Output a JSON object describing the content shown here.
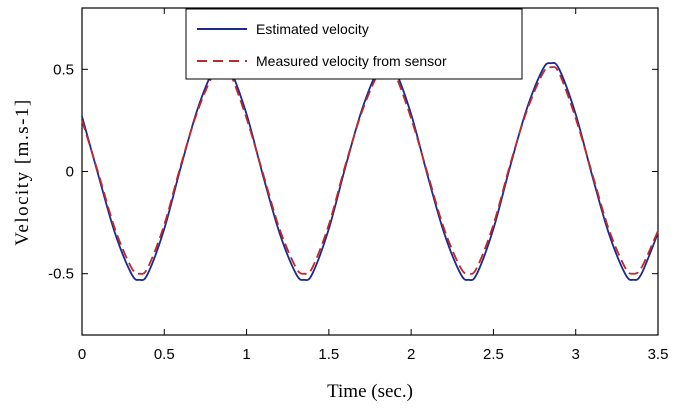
{
  "chart_data": {
    "type": "line",
    "xlabel": "Time (sec.)",
    "ylabel": "Velocity [m.s-1]",
    "xlim": [
      0,
      3.5
    ],
    "ylim": [
      -0.8,
      0.8
    ],
    "x_ticks": [
      0,
      0.5,
      1,
      1.5,
      2,
      2.5,
      3,
      3.5
    ],
    "x_tick_labels": [
      "0",
      "0.5",
      "1",
      "1.5",
      "2",
      "2.5",
      "3",
      "3.5"
    ],
    "y_ticks": [
      0.5,
      0,
      -0.5
    ],
    "y_tick_labels": [
      "0.5",
      "0",
      "-0.5"
    ],
    "grid": false,
    "legend_position": "top-center",
    "x": [
      0,
      0.1,
      0.2,
      0.3,
      0.35,
      0.4,
      0.5,
      0.6,
      0.7,
      0.8,
      0.85,
      0.9,
      1.0,
      1.1,
      1.2,
      1.3,
      1.35,
      1.4,
      1.5,
      1.6,
      1.7,
      1.8,
      1.85,
      1.9,
      2.0,
      2.1,
      2.2,
      2.3,
      2.35,
      2.4,
      2.5,
      2.6,
      2.7,
      2.8,
      2.85,
      2.9,
      3.0,
      3.1,
      3.2,
      3.3,
      3.35,
      3.4,
      3.5
    ],
    "series": [
      {
        "name": "Estimated velocity",
        "color": "#1c2a8c",
        "style": "solid",
        "values": [
          0.27,
          -0.02,
          -0.3,
          -0.5,
          -0.53,
          -0.5,
          -0.28,
          0.02,
          0.3,
          0.5,
          0.53,
          0.5,
          0.28,
          -0.02,
          -0.3,
          -0.5,
          -0.53,
          -0.5,
          -0.28,
          0.02,
          0.3,
          0.5,
          0.53,
          0.5,
          0.28,
          -0.02,
          -0.3,
          -0.5,
          -0.53,
          -0.5,
          -0.28,
          0.02,
          0.3,
          0.5,
          0.53,
          0.5,
          0.28,
          -0.02,
          -0.3,
          -0.5,
          -0.53,
          -0.5,
          -0.3
        ]
      },
      {
        "name": "Measured velocity from sensor",
        "color": "#c0282d",
        "style": "dashed",
        "values": [
          0.25,
          -0.01,
          -0.28,
          -0.47,
          -0.5,
          -0.47,
          -0.26,
          0.03,
          0.29,
          0.48,
          0.51,
          0.48,
          0.26,
          -0.01,
          -0.28,
          -0.47,
          -0.5,
          -0.47,
          -0.26,
          0.03,
          0.29,
          0.48,
          0.51,
          0.48,
          0.26,
          -0.01,
          -0.28,
          -0.47,
          -0.5,
          -0.47,
          -0.26,
          0.03,
          0.29,
          0.48,
          0.51,
          0.48,
          0.26,
          -0.01,
          -0.28,
          -0.47,
          -0.5,
          -0.47,
          -0.29
        ]
      }
    ]
  }
}
